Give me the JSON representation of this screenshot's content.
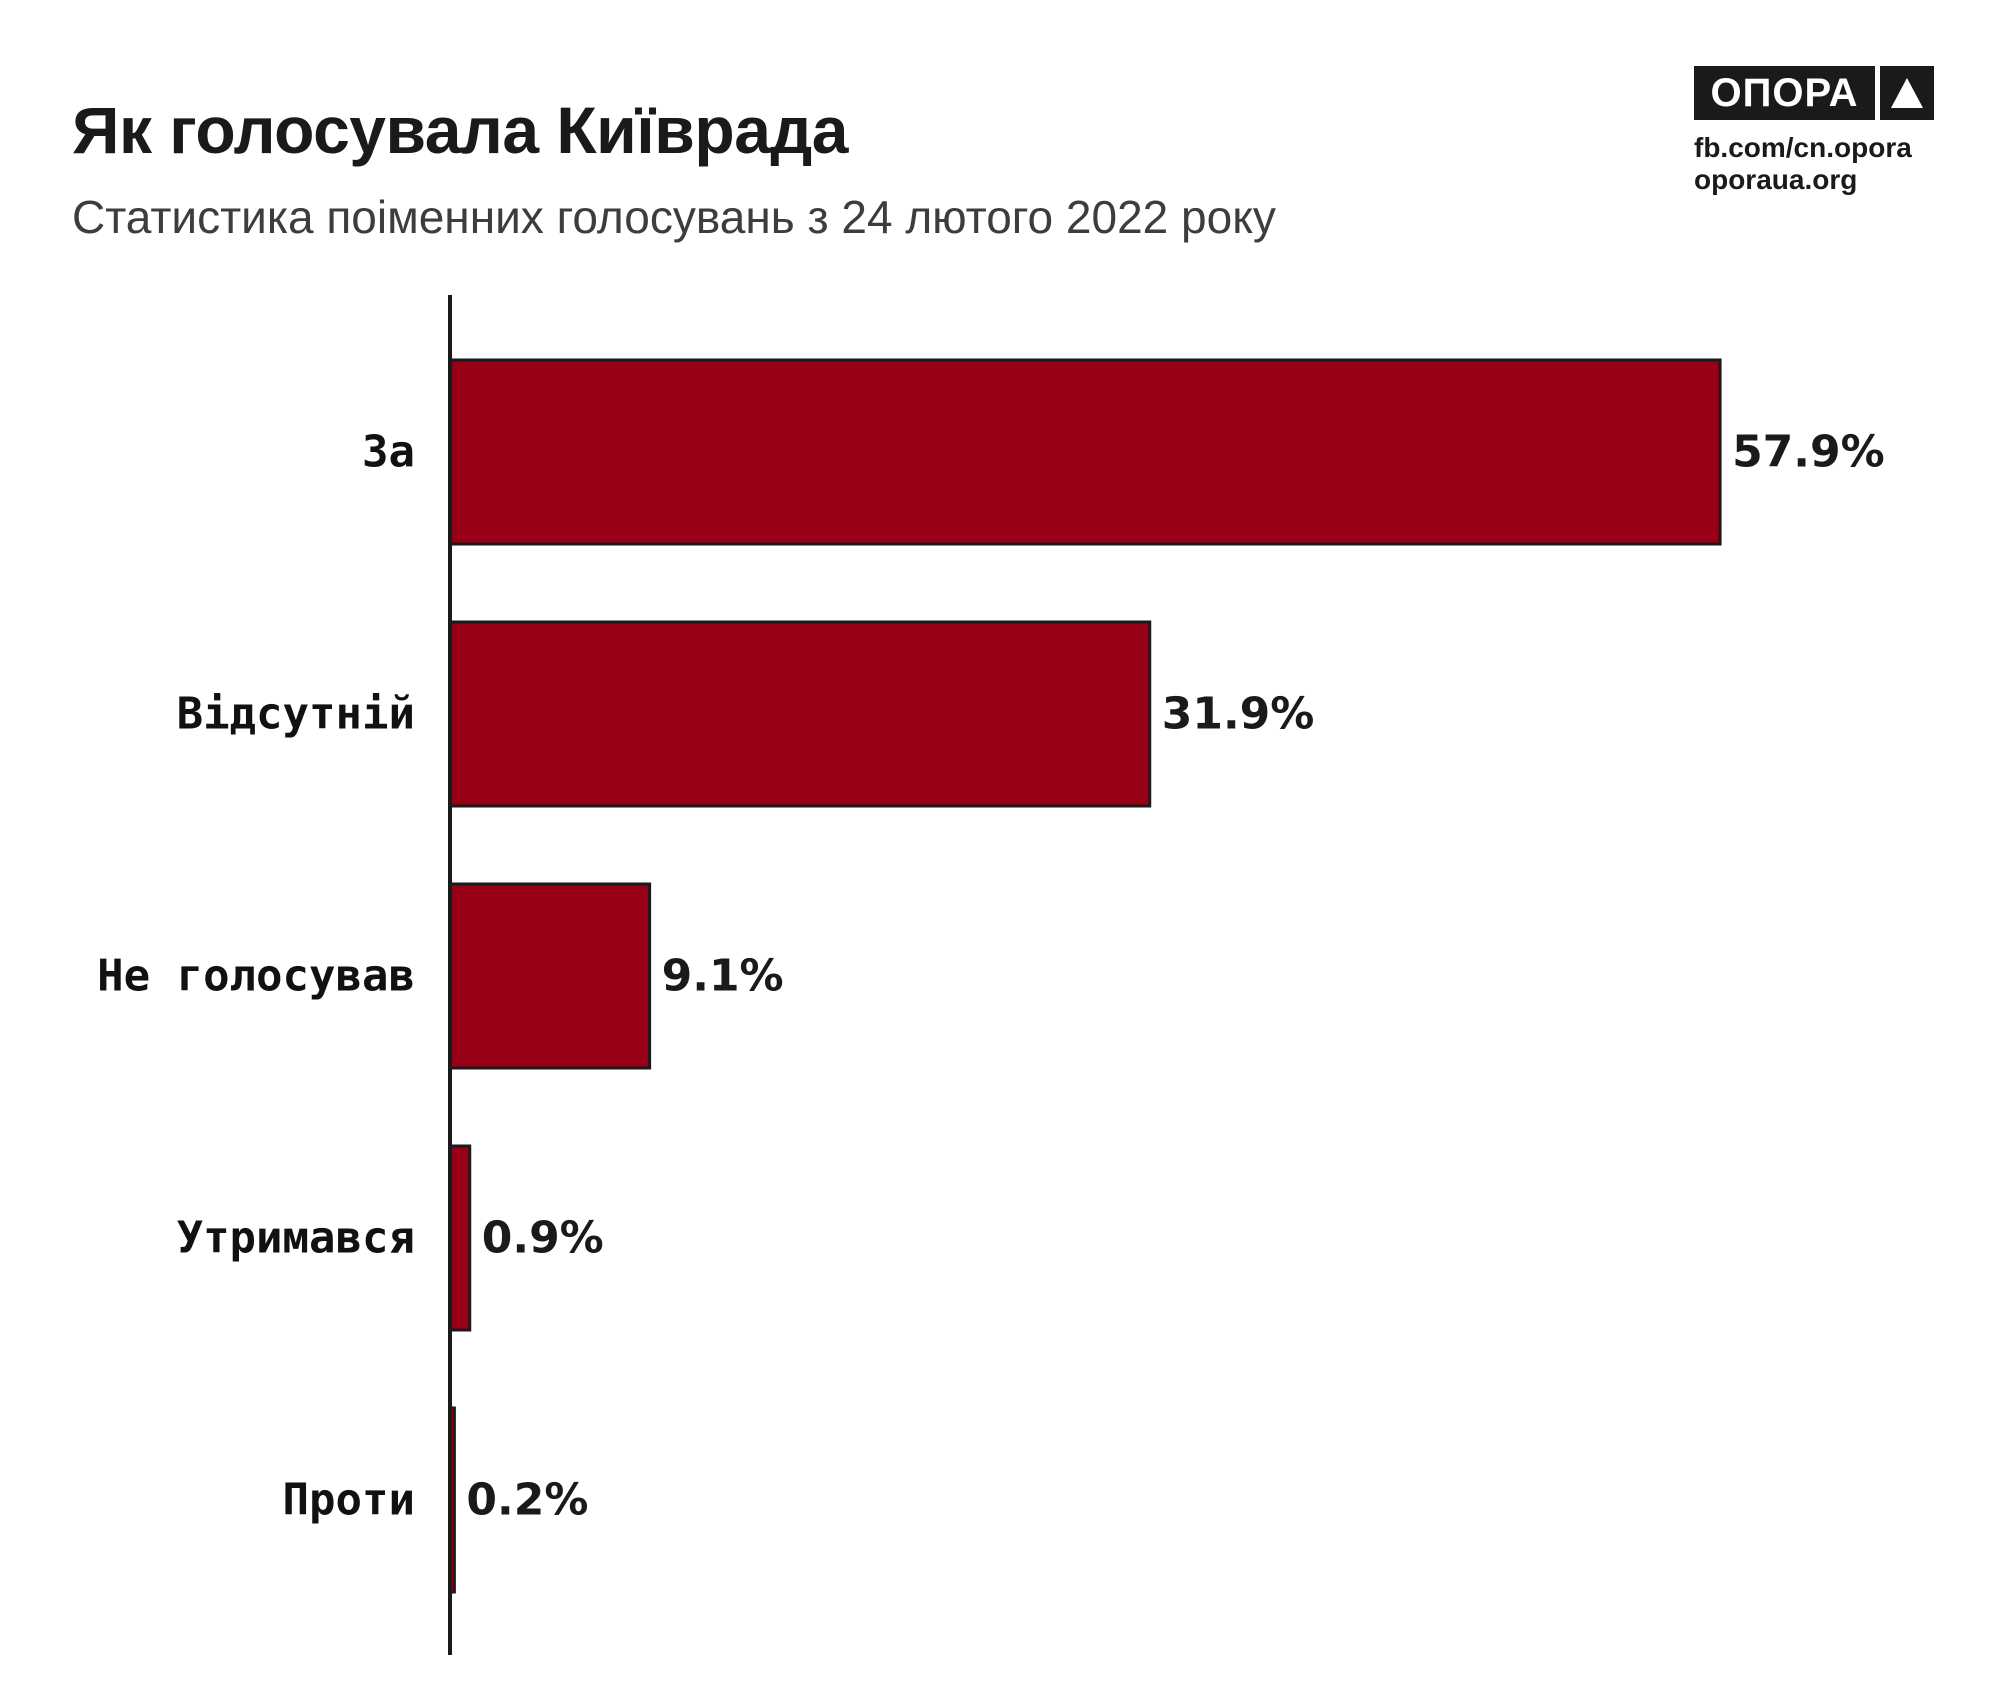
{
  "header": {
    "title": "Як голосувала Київрада",
    "subtitle": "Статистика поіменних голосувань з 24 лютого 2022 року"
  },
  "brand": {
    "logo_text": "ОПОРА",
    "logo_icon": "triangle-icon",
    "link_facebook": "fb.com/cn.opora",
    "link_site": "oporaua.org"
  },
  "chart_data": {
    "type": "bar",
    "orientation": "horizontal",
    "categories": [
      "За",
      "Відсутній",
      "Не голосував",
      "Утримався",
      "Проти"
    ],
    "values": [
      57.9,
      31.9,
      9.1,
      0.9,
      0.2
    ],
    "value_labels": [
      "57.9%",
      "31.9%",
      "9.1%",
      "0.9%",
      "0.2%"
    ],
    "unit": "%",
    "xlim": [
      0,
      62
    ],
    "grid": false,
    "legend": "none",
    "colors": {
      "bar": "#980017",
      "bar_stroke": "#1a1a1a",
      "axis": "#1a1a1a"
    }
  }
}
